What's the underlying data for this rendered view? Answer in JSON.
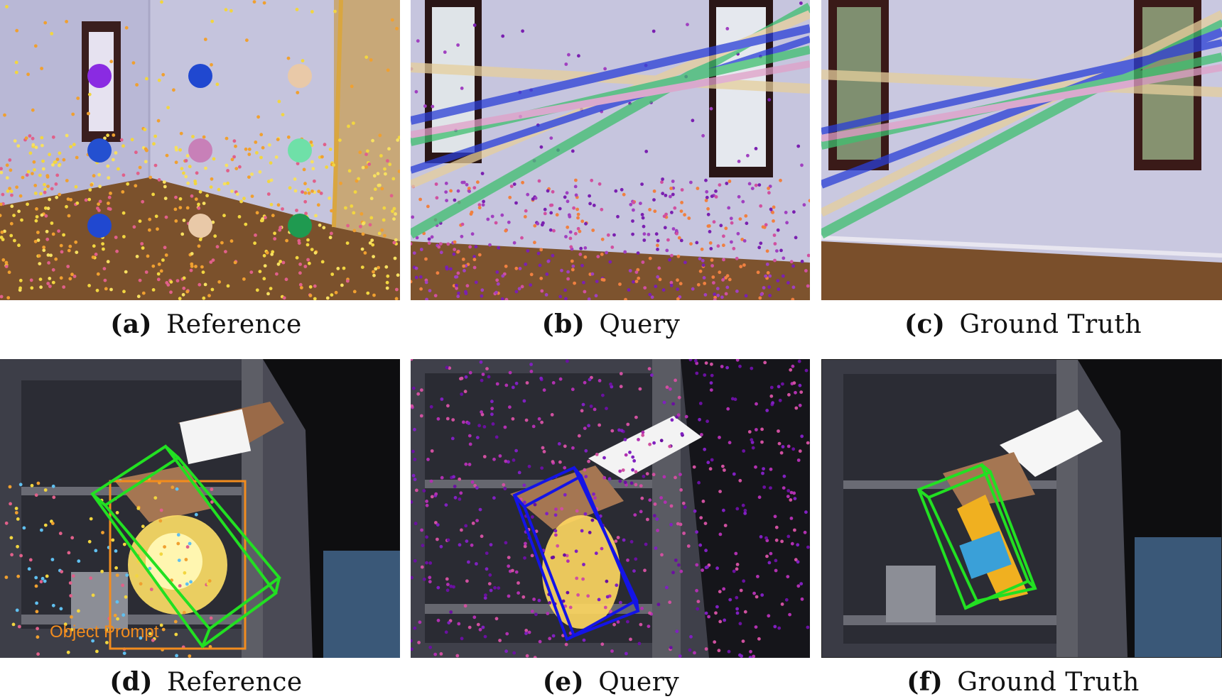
{
  "figure": {
    "rows": [
      {
        "panels": [
          {
            "tag": "(a)",
            "label": "Reference"
          },
          {
            "tag": "(b)",
            "label": "Query"
          },
          {
            "tag": "(c)",
            "label": "Ground Truth"
          }
        ]
      },
      {
        "panels": [
          {
            "tag": "(d)",
            "label": "Reference"
          },
          {
            "tag": "(e)",
            "label": "Query"
          },
          {
            "tag": "(f)",
            "label": "Ground Truth"
          }
        ]
      }
    ],
    "object_prompt_label": "Object Prompt",
    "colors": {
      "wall": "#c9c8e0",
      "floor": "#7a4f2b",
      "prompt_box": "#f28c1e",
      "pred_box": "#1414e6",
      "gt_box": "#22e022",
      "ray_green": "#3fbf6f",
      "ray_beige": "#e6cf9c",
      "ray_blue": "#2a3fd6",
      "ray_pink": "#e0a0c8"
    },
    "prompt_dots": [
      "#8a2be2",
      "#2048d0",
      "#e9c9a8",
      "#2450d0",
      "#c880b8",
      "#6fe0a8",
      "#2048d0",
      "#e9c9a8",
      "#1f9a50"
    ]
  }
}
